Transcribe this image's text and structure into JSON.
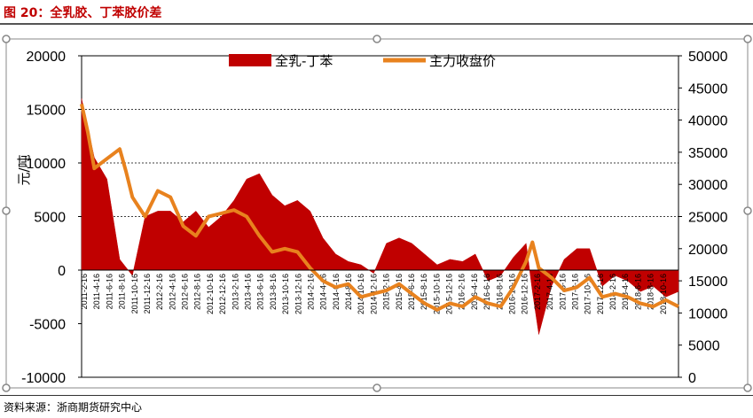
{
  "figure": {
    "title": "图 20：全乳胶、丁苯胶价差",
    "source": "资料来源：浙商期货研究中心"
  },
  "chart_data": {
    "type": "area+line",
    "ylabel_left": "元/吨",
    "left_axis": {
      "min": -10000,
      "max": 20000,
      "ticks": [
        20000,
        15000,
        10000,
        5000,
        0,
        -5000,
        -10000
      ]
    },
    "right_axis": {
      "min": 0,
      "max": 50000,
      "ticks": [
        50000,
        45000,
        40000,
        35000,
        30000,
        25000,
        20000,
        15000,
        10000,
        5000,
        0
      ]
    },
    "gridlines_left": [
      15000,
      10000,
      5000
    ],
    "legend_placement": "top-center",
    "x_start": "2011-02",
    "x_end": "2018-12",
    "x_tick_labels": [
      "2011-2-16",
      "2011-4-16",
      "2011-6-16",
      "2011-8-16",
      "2011-10-16",
      "2011-12-16",
      "2012-2-16",
      "2012-4-16",
      "2012-6-16",
      "2012-8-16",
      "2012-10-16",
      "2012-12-16",
      "2013-2-16",
      "2013-4-16",
      "2013-6-16",
      "2013-8-16",
      "2013-10-16",
      "2013-12-16",
      "2014-2-16",
      "2014-4-16",
      "2014-6-16",
      "2014-8-16",
      "2014-10-16",
      "2014-12-16",
      "2015-2-16",
      "2015-4-16",
      "2015-6-16",
      "2015-8-16",
      "2015-10-16",
      "2015-12-16",
      "2016-2-16",
      "2016-4-16",
      "2016-6-16",
      "2016-8-16",
      "2016-10-16",
      "2016-12-16",
      "2017-2-16",
      "2017-4-16",
      "2017-6-16",
      "2017-8-16",
      "2017-10-16",
      "2017-12-16",
      "2018-2-16",
      "2018-4-16",
      "2018-6-16",
      "2018-8-16",
      "2018-10-16"
    ],
    "series": [
      {
        "name": "全乳-丁苯",
        "kind": "area",
        "axis": "left",
        "color": "#c00000",
        "x": [
          "2011-02",
          "2011-04",
          "2011-06",
          "2011-08",
          "2011-10",
          "2011-12",
          "2012-02",
          "2012-04",
          "2012-06",
          "2012-08",
          "2012-10",
          "2012-12",
          "2013-02",
          "2013-04",
          "2013-06",
          "2013-08",
          "2013-10",
          "2013-12",
          "2014-02",
          "2014-04",
          "2014-06",
          "2014-08",
          "2014-10",
          "2014-12",
          "2015-02",
          "2015-04",
          "2015-06",
          "2015-08",
          "2015-10",
          "2015-12",
          "2016-02",
          "2016-04",
          "2016-06",
          "2016-08",
          "2016-10",
          "2016-12",
          "2017-01",
          "2017-02",
          "2017-04",
          "2017-06",
          "2017-08",
          "2017-10",
          "2017-12",
          "2018-02",
          "2018-04",
          "2018-06",
          "2018-08",
          "2018-10",
          "2018-12"
        ],
        "y": [
          16000,
          10500,
          8500,
          1000,
          -500,
          5000,
          5500,
          5500,
          4500,
          5500,
          4000,
          5000,
          6500,
          8500,
          9000,
          7000,
          6000,
          6500,
          5500,
          3000,
          1500,
          800,
          500,
          -300,
          2500,
          3000,
          2500,
          1500,
          500,
          1000,
          800,
          1500,
          -1000,
          -500,
          1200,
          2500,
          -2000,
          -6000,
          -1500,
          1000,
          2000,
          2000,
          -1500,
          -500,
          -1000,
          -2000,
          -1500,
          -2500,
          -2000
        ]
      },
      {
        "name": "主力收盘价",
        "kind": "line",
        "axis": "right",
        "color": "#e8821e",
        "x": [
          "2011-02",
          "2011-03",
          "2011-04",
          "2011-06",
          "2011-08",
          "2011-09",
          "2011-10",
          "2011-11",
          "2011-12",
          "2012-02",
          "2012-04",
          "2012-06",
          "2012-08",
          "2012-10",
          "2012-12",
          "2013-02",
          "2013-04",
          "2013-06",
          "2013-08",
          "2013-10",
          "2013-12",
          "2014-02",
          "2014-04",
          "2014-06",
          "2014-08",
          "2014-10",
          "2014-12",
          "2015-02",
          "2015-04",
          "2015-06",
          "2015-08",
          "2015-10",
          "2015-12",
          "2016-02",
          "2016-04",
          "2016-06",
          "2016-08",
          "2016-10",
          "2016-12",
          "2017-01",
          "2017-02",
          "2017-04",
          "2017-06",
          "2017-08",
          "2017-10",
          "2017-12",
          "2018-02",
          "2018-04",
          "2018-06",
          "2018-08",
          "2018-10",
          "2018-12"
        ],
        "y": [
          42500,
          38000,
          32500,
          34000,
          35500,
          32000,
          28000,
          26500,
          25000,
          29000,
          28000,
          23500,
          22000,
          25000,
          25500,
          26000,
          25000,
          22000,
          19500,
          20000,
          19500,
          17000,
          15000,
          14000,
          14500,
          12500,
          13000,
          13500,
          14500,
          13000,
          11500,
          10500,
          11500,
          11000,
          12500,
          11500,
          11000,
          14000,
          18000,
          21000,
          17000,
          15500,
          13500,
          14000,
          15500,
          12500,
          13000,
          12500,
          11500,
          11000,
          12000,
          11000
        ]
      }
    ]
  }
}
